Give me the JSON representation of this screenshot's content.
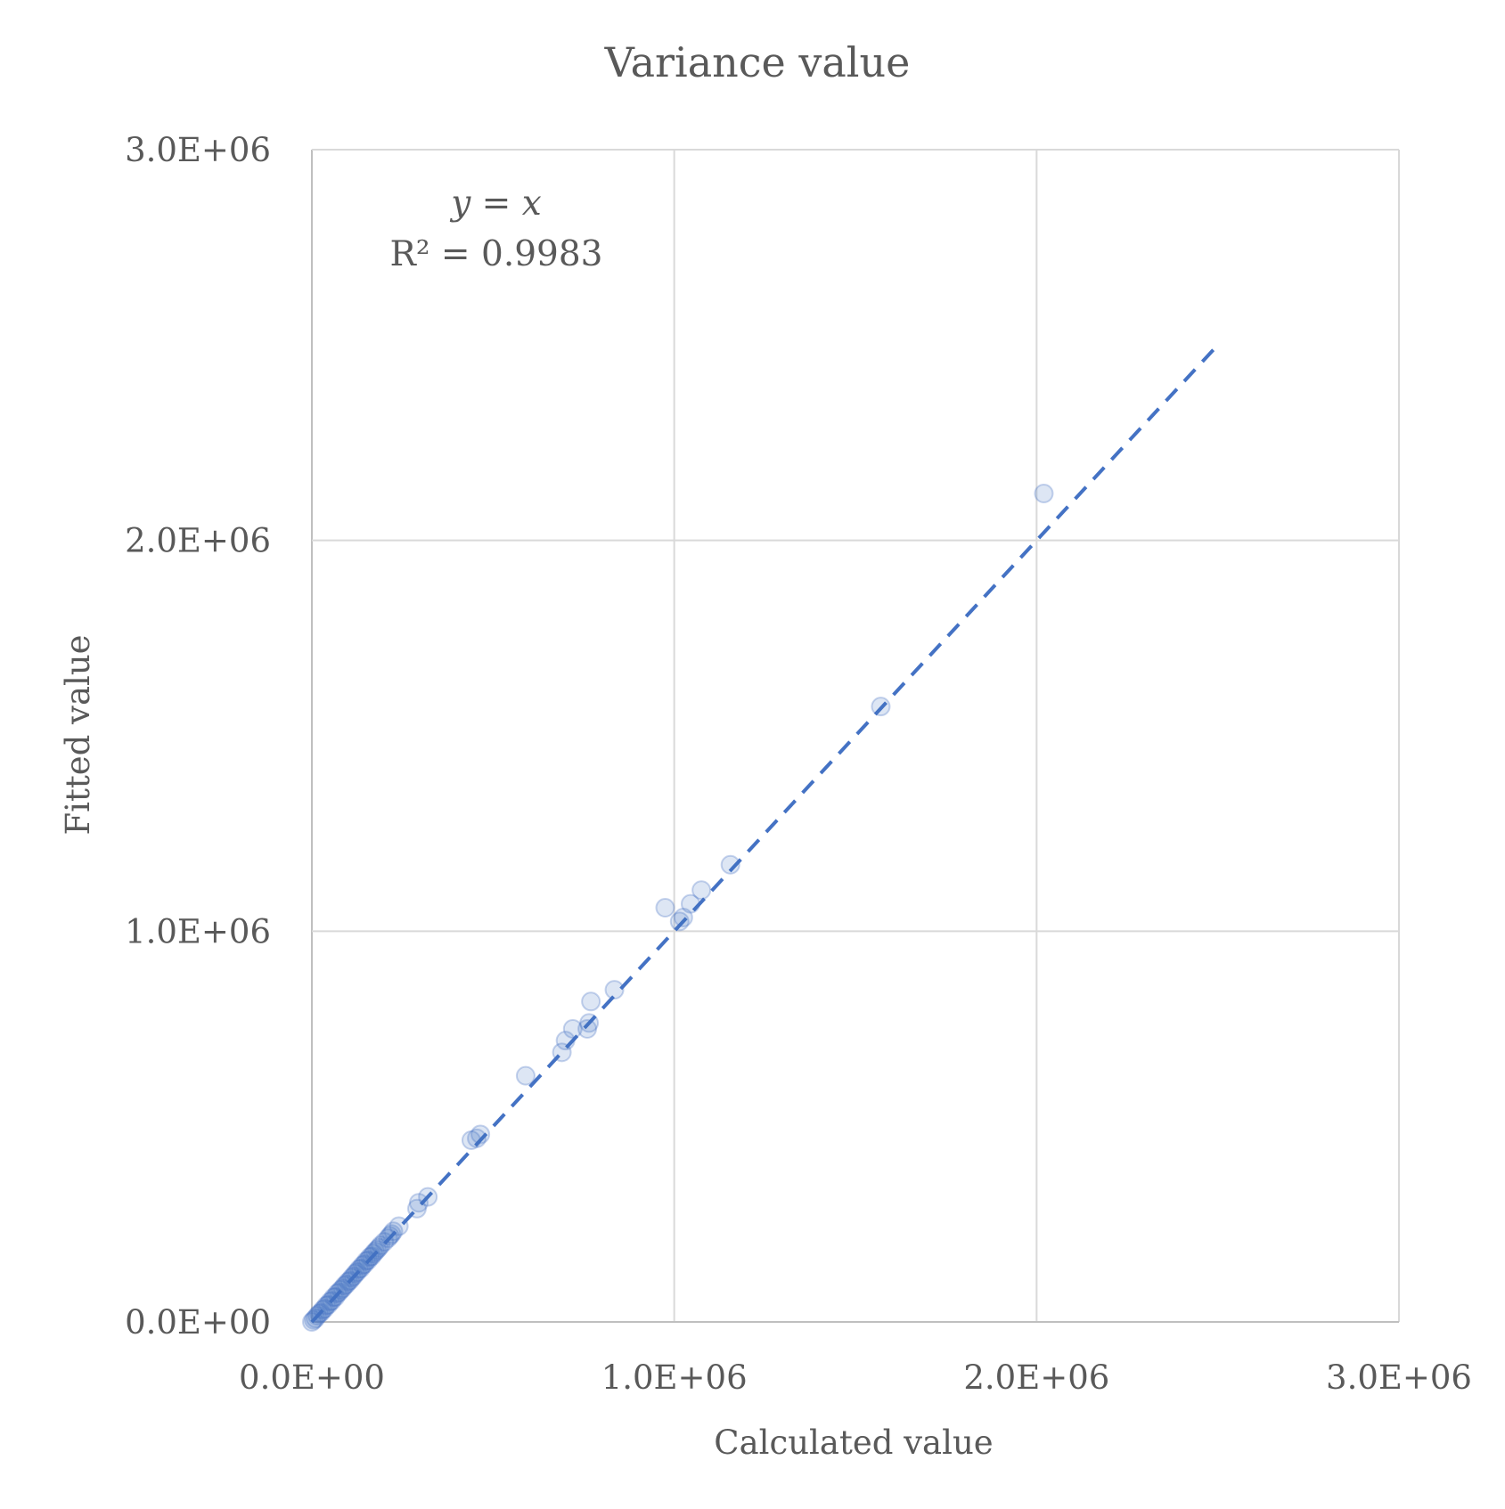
{
  "chart_data": {
    "type": "scatter",
    "title": "Variance value",
    "xlabel": "Calculated value",
    "ylabel": "Fitted value",
    "xlim": [
      0,
      3000000
    ],
    "ylim": [
      0,
      3000000
    ],
    "x_ticks": [
      "0.0E+00",
      "1.0E+06",
      "2.0E+06",
      "3.0E+06"
    ],
    "y_ticks": [
      "0.0E+00",
      "1.0E+06",
      "2.0E+06",
      "3.0E+06"
    ],
    "x_tick_values": [
      0,
      1000000,
      2000000,
      3000000
    ],
    "y_tick_values": [
      0,
      1000000,
      2000000,
      3000000
    ],
    "grid": true,
    "annotation": {
      "equation": "y = x",
      "r2": "R² = 0.9983"
    },
    "marker_color": "#4472c4",
    "series": [
      {
        "points": [
          [
            0,
            0
          ],
          [
            5000,
            5000
          ],
          [
            10000,
            9000
          ],
          [
            15000,
            16000
          ],
          [
            20000,
            21000
          ],
          [
            25000,
            24000
          ],
          [
            30000,
            31000
          ],
          [
            35000,
            34000
          ],
          [
            40000,
            42000
          ],
          [
            45000,
            44000
          ],
          [
            50000,
            52000
          ],
          [
            55000,
            54000
          ],
          [
            60000,
            63000
          ],
          [
            65000,
            64000
          ],
          [
            70000,
            73000
          ],
          [
            75000,
            76000
          ],
          [
            80000,
            82000
          ],
          [
            85000,
            86000
          ],
          [
            90000,
            93000
          ],
          [
            95000,
            96000
          ],
          [
            100000,
            103000
          ],
          [
            105000,
            106000
          ],
          [
            110000,
            113000
          ],
          [
            115000,
            117000
          ],
          [
            120000,
            124000
          ],
          [
            125000,
            128000
          ],
          [
            130000,
            135000
          ],
          [
            135000,
            137000
          ],
          [
            140000,
            145000
          ],
          [
            145000,
            148000
          ],
          [
            150000,
            156000
          ],
          [
            155000,
            158000
          ],
          [
            160000,
            166000
          ],
          [
            165000,
            168000
          ],
          [
            170000,
            175000
          ],
          [
            175000,
            180000
          ],
          [
            180000,
            185000
          ],
          [
            185000,
            190000
          ],
          [
            190000,
            196000
          ],
          [
            200000,
            205000
          ],
          [
            210000,
            214000
          ],
          [
            215000,
            220000
          ],
          [
            220000,
            225000
          ],
          [
            225000,
            232000
          ],
          [
            240000,
            245000
          ],
          [
            290000,
            290000
          ],
          [
            295000,
            305000
          ],
          [
            320000,
            320000
          ],
          [
            440000,
            465000
          ],
          [
            455000,
            470000
          ],
          [
            465000,
            480000
          ],
          [
            590000,
            630000
          ],
          [
            690000,
            690000
          ],
          [
            700000,
            720000
          ],
          [
            720000,
            750000
          ],
          [
            760000,
            750000
          ],
          [
            765000,
            765000
          ],
          [
            770000,
            820000
          ],
          [
            835000,
            850000
          ],
          [
            975000,
            1060000
          ],
          [
            1015000,
            1025000
          ],
          [
            1025000,
            1035000
          ],
          [
            1045000,
            1070000
          ],
          [
            1075000,
            1105000
          ],
          [
            1155000,
            1170000
          ],
          [
            1570000,
            1575000
          ],
          [
            2020000,
            2120000
          ]
        ]
      }
    ],
    "trendline": {
      "x": [
        0,
        2500000
      ],
      "y": [
        0,
        2500000
      ],
      "style": "dashed"
    }
  }
}
